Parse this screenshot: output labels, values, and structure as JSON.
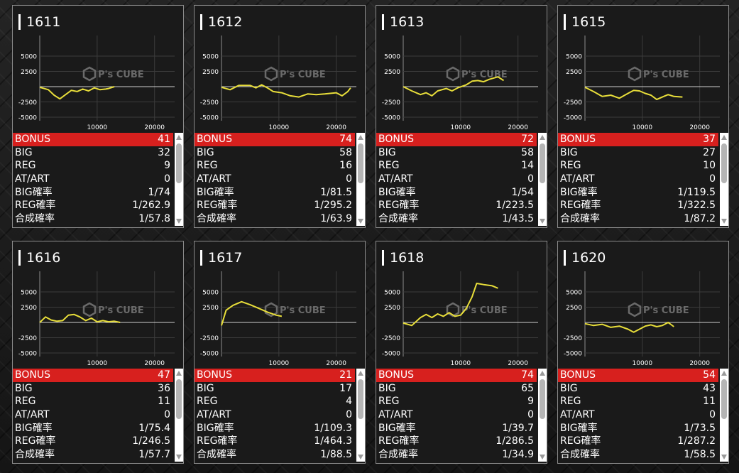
{
  "graph_axis": {
    "y_labels": [
      "5000",
      "2500",
      "-2500",
      "-5000"
    ],
    "x_labels": [
      "10000",
      "20000"
    ],
    "watermark": "P's CUBE"
  },
  "row_labels": [
    "BONUS",
    "BIG",
    "REG",
    "AT/ART",
    "BIG確率",
    "REG確率",
    "合成確率"
  ],
  "colors": {
    "bonus_row": "#d7201e",
    "line": "#e8de3a",
    "border": "#8a8a8a"
  },
  "machines": [
    {
      "number": "1611",
      "stats": [
        "41",
        "32",
        "9",
        "0",
        "1/74",
        "1/262.9",
        "1/57.8"
      ],
      "line": [
        [
          0,
          -100
        ],
        [
          1500,
          -500
        ],
        [
          2500,
          -1400
        ],
        [
          3500,
          -2000
        ],
        [
          4500,
          -1300
        ],
        [
          5500,
          -600
        ],
        [
          6500,
          -800
        ],
        [
          7500,
          -400
        ],
        [
          8500,
          -700
        ],
        [
          9500,
          -200
        ],
        [
          10500,
          -500
        ],
        [
          11500,
          -400
        ],
        [
          12000,
          -300
        ],
        [
          13000,
          0
        ]
      ]
    },
    {
      "number": "1612",
      "stats": [
        "74",
        "58",
        "16",
        "0",
        "1/81.5",
        "1/295.2",
        "1/63.9"
      ],
      "line": [
        [
          0,
          -100
        ],
        [
          1500,
          -500
        ],
        [
          3000,
          200
        ],
        [
          5000,
          200
        ],
        [
          6000,
          -200
        ],
        [
          7000,
          300
        ],
        [
          8000,
          -200
        ],
        [
          9000,
          -800
        ],
        [
          10500,
          -1000
        ],
        [
          12000,
          -1500
        ],
        [
          13500,
          -1700
        ],
        [
          15000,
          -1200
        ],
        [
          16500,
          -1300
        ],
        [
          18000,
          -1200
        ],
        [
          20000,
          -1000
        ],
        [
          21000,
          -1500
        ],
        [
          22000,
          -800
        ],
        [
          22500,
          -200
        ]
      ]
    },
    {
      "number": "1613",
      "stats": [
        "72",
        "58",
        "14",
        "0",
        "1/54",
        "1/223.5",
        "1/43.5"
      ],
      "line": [
        [
          0,
          0
        ],
        [
          1500,
          -700
        ],
        [
          3000,
          -1300
        ],
        [
          4000,
          -1000
        ],
        [
          5000,
          -1500
        ],
        [
          6000,
          -700
        ],
        [
          7500,
          -300
        ],
        [
          8500,
          -700
        ],
        [
          9500,
          -200
        ],
        [
          11000,
          300
        ],
        [
          12000,
          900
        ],
        [
          13000,
          1000
        ],
        [
          14000,
          800
        ],
        [
          15000,
          1200
        ],
        [
          16500,
          1600
        ],
        [
          17500,
          1000
        ]
      ]
    },
    {
      "number": "1615",
      "stats": [
        "37",
        "27",
        "10",
        "0",
        "1/119.5",
        "1/322.5",
        "1/87.2"
      ],
      "line": [
        [
          0,
          -100
        ],
        [
          1500,
          -800
        ],
        [
          3000,
          -1600
        ],
        [
          4500,
          -1400
        ],
        [
          6000,
          -1900
        ],
        [
          7500,
          -1100
        ],
        [
          8500,
          -600
        ],
        [
          9500,
          -700
        ],
        [
          10500,
          -1100
        ],
        [
          11500,
          -1400
        ],
        [
          12500,
          -2100
        ],
        [
          13500,
          -1700
        ],
        [
          14500,
          -1300
        ],
        [
          15500,
          -1600
        ],
        [
          17000,
          -1700
        ]
      ]
    },
    {
      "number": "1616",
      "stats": [
        "47",
        "36",
        "11",
        "0",
        "1/75.4",
        "1/246.5",
        "1/57.7"
      ],
      "line": [
        [
          0,
          0
        ],
        [
          1000,
          900
        ],
        [
          2000,
          400
        ],
        [
          3000,
          200
        ],
        [
          4000,
          300
        ],
        [
          5000,
          1200
        ],
        [
          6000,
          1300
        ],
        [
          7000,
          900
        ],
        [
          8000,
          300
        ],
        [
          9000,
          700
        ],
        [
          10000,
          100
        ],
        [
          11000,
          300
        ],
        [
          12000,
          100
        ],
        [
          13000,
          200
        ],
        [
          14000,
          0
        ]
      ]
    },
    {
      "number": "1617",
      "stats": [
        "21",
        "17",
        "4",
        "0",
        "1/109.3",
        "1/464.3",
        "1/88.5"
      ],
      "line": [
        [
          0,
          -500
        ],
        [
          800,
          2000
        ],
        [
          2000,
          2800
        ],
        [
          3500,
          3400
        ],
        [
          5000,
          2900
        ],
        [
          6500,
          2300
        ],
        [
          8000,
          1700
        ],
        [
          9500,
          1200
        ],
        [
          10500,
          1000
        ]
      ]
    },
    {
      "number": "1618",
      "stats": [
        "74",
        "65",
        "9",
        "0",
        "1/39.7",
        "1/286.5",
        "1/34.9"
      ],
      "line": [
        [
          0,
          -100
        ],
        [
          1500,
          -500
        ],
        [
          3000,
          800
        ],
        [
          4000,
          1300
        ],
        [
          5000,
          800
        ],
        [
          6000,
          1400
        ],
        [
          7000,
          1000
        ],
        [
          8000,
          1600
        ],
        [
          9000,
          1000
        ],
        [
          10000,
          1200
        ],
        [
          11000,
          2300
        ],
        [
          12000,
          4200
        ],
        [
          12800,
          6400
        ],
        [
          14000,
          6200
        ],
        [
          15500,
          6000
        ],
        [
          16500,
          5600
        ]
      ]
    },
    {
      "number": "1620",
      "stats": [
        "54",
        "43",
        "11",
        "0",
        "1/73.5",
        "1/287.2",
        "1/58.5"
      ],
      "line": [
        [
          0,
          -200
        ],
        [
          1500,
          -500
        ],
        [
          3000,
          -300
        ],
        [
          4500,
          -800
        ],
        [
          6000,
          -600
        ],
        [
          7500,
          -1100
        ],
        [
          8500,
          -1600
        ],
        [
          9500,
          -1100
        ],
        [
          10500,
          -600
        ],
        [
          11500,
          -400
        ],
        [
          12500,
          -700
        ],
        [
          13500,
          -500
        ],
        [
          14500,
          0
        ],
        [
          15500,
          -700
        ]
      ]
    }
  ]
}
